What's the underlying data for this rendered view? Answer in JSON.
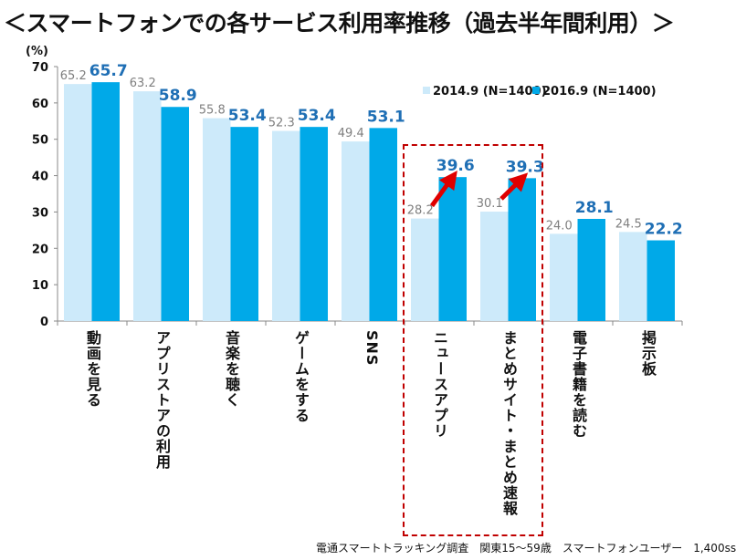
{
  "chart_data": {
    "type": "bar",
    "title": "＜スマートフォンでの各サービス利用率推移（過去半年間利用）＞",
    "ylabel": "(%)",
    "ylim": [
      0,
      70
    ],
    "yticks": [
      0,
      10,
      20,
      30,
      40,
      50,
      60,
      70
    ],
    "ytick_labels": [
      "0",
      "10",
      "20",
      "30",
      "40",
      "50",
      "60",
      "70"
    ],
    "categories": [
      "動画を見る",
      "アプリストアの利用",
      "音楽を聴く",
      "ゲームをする",
      "SNS",
      "ニュースアプリ",
      "まとめサイト・まとめ速報",
      "電子書籍を読む",
      "掲示板"
    ],
    "series": [
      {
        "name": "2014.9 (N=1400)",
        "color": "#cdeafa",
        "label_color": "#7f7f7f",
        "values": [
          65.2,
          63.2,
          55.8,
          52.3,
          49.4,
          28.2,
          30.1,
          24.0,
          24.5
        ],
        "labels": [
          "65.2",
          "63.2",
          "55.8",
          "52.3",
          "49.4",
          "28.2",
          "30.1",
          "24.0",
          "24.5"
        ]
      },
      {
        "name": "2016.9 (N=1400)",
        "color": "#00a9e8",
        "label_color": "#1f6fb5",
        "values": [
          65.7,
          58.9,
          53.4,
          53.4,
          53.1,
          39.6,
          39.3,
          28.1,
          22.2
        ],
        "labels": [
          "65.7",
          "58.9",
          "53.4",
          "53.4",
          "53.1",
          "39.6",
          "39.3",
          "28.1",
          "22.2"
        ]
      }
    ],
    "highlighted_categories": [
      "ニュースアプリ",
      "まとめサイト・まとめ速報"
    ],
    "highlight_color": "#c00000",
    "legend_position": "top-right",
    "grid": false,
    "source": "電通スマートトラッキング調査　関東15～59歳　スマートフォンユーザー　1,400ss"
  }
}
